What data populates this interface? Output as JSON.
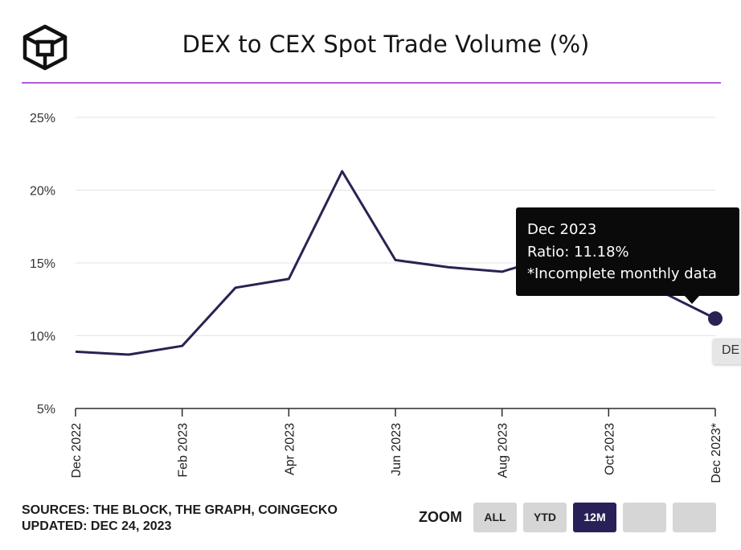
{
  "header": {
    "title": "DEX to CEX Spot Trade Volume (%)",
    "logo_icon": "the-block-logo-icon"
  },
  "colors": {
    "divider": "#b25be0",
    "line": "#2a2253",
    "tooltip_bg": "#0a0a0a",
    "active_button": "#282157"
  },
  "tooltip": {
    "title": "Dec 2023",
    "ratio": "Ratio: 11.18%",
    "note": "*Incomplete monthly data"
  },
  "crosshair_label": "DE",
  "footer": {
    "sources": "SOURCES: THE BLOCK, THE GRAPH, COINGECKO",
    "updated": "UPDATED: DEC 24, 2023",
    "zoom_label": "ZOOM",
    "buttons": [
      {
        "label": "ALL",
        "active": false
      },
      {
        "label": "YTD",
        "active": false
      },
      {
        "label": "12M",
        "active": true
      },
      {
        "label": "",
        "active": false
      },
      {
        "label": "",
        "active": false
      }
    ]
  },
  "chart_data": {
    "type": "line",
    "title": "DEX to CEX Spot Trade Volume (%)",
    "y_ticks": [
      "5%",
      "10%",
      "15%",
      "20%",
      "25%"
    ],
    "y_tick_values": [
      5,
      10,
      15,
      20,
      25
    ],
    "ylim": [
      5,
      25
    ],
    "x_tick_labels": [
      "Dec 2022",
      "Feb 2023",
      "Apr 2023",
      "Jun 2023",
      "Aug 2023",
      "Oct 2023",
      "Dec 2023*"
    ],
    "x_tick_indices": [
      0,
      2,
      4,
      6,
      8,
      10,
      12
    ],
    "series": [
      {
        "x": [
          "Dec 2022",
          "Jan 2023",
          "Feb 2023",
          "Mar 2023",
          "Apr 2023",
          "May 2023",
          "Jun 2023",
          "Jul 2023",
          "Aug 2023",
          "Sep 2023",
          "Oct 2023",
          "Nov 2023",
          "Dec 2023"
        ],
        "values": [
          8.9,
          8.7,
          9.3,
          13.3,
          13.9,
          21.3,
          15.2,
          14.7,
          14.4,
          15.5,
          15.3,
          13.0,
          11.18
        ]
      }
    ],
    "highlighted_point": {
      "x": "Dec 2023",
      "value": 11.18
    },
    "grid": true,
    "legend": false
  }
}
